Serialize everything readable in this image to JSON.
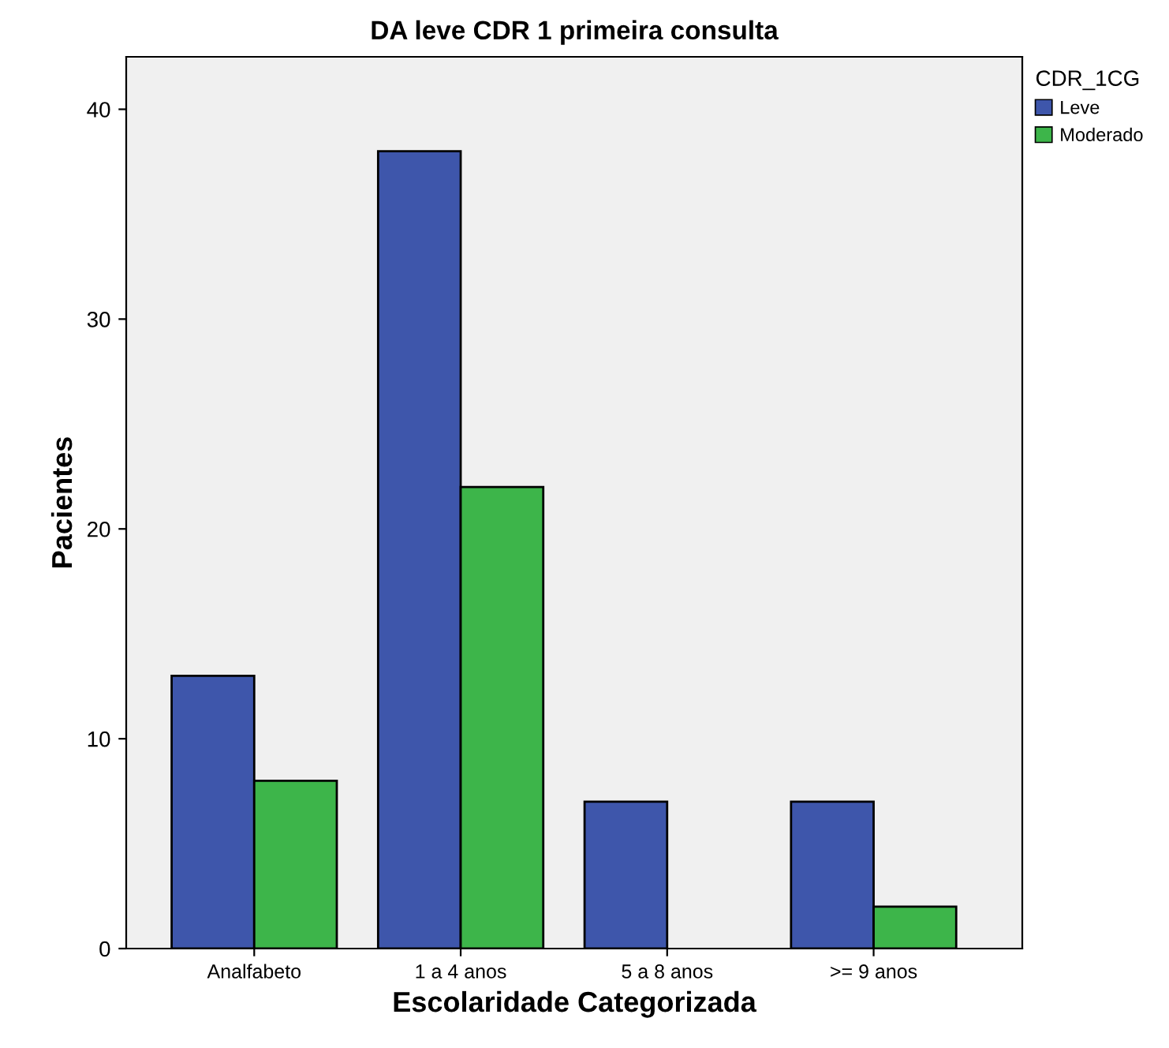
{
  "chart_data": {
    "type": "bar",
    "title": "DA leve CDR 1 primeira consulta",
    "xlabel": "Escolaridade Categorizada",
    "ylabel": "Pacientes",
    "legend_title": "CDR_1CG",
    "categories": [
      "Analfabeto",
      "1 a 4 anos",
      "5 a 8 anos",
      ">= 9 anos"
    ],
    "series": [
      {
        "name": "Leve",
        "color": "#3e56ab",
        "values": [
          13,
          38,
          7,
          7
        ]
      },
      {
        "name": "Moderado",
        "color": "#3db54a",
        "values": [
          8,
          22,
          null,
          2
        ]
      }
    ],
    "ylim": [
      0,
      42.5
    ],
    "yticks": [
      0,
      10,
      20,
      30,
      40
    ],
    "grid": false,
    "legend": "top right"
  }
}
